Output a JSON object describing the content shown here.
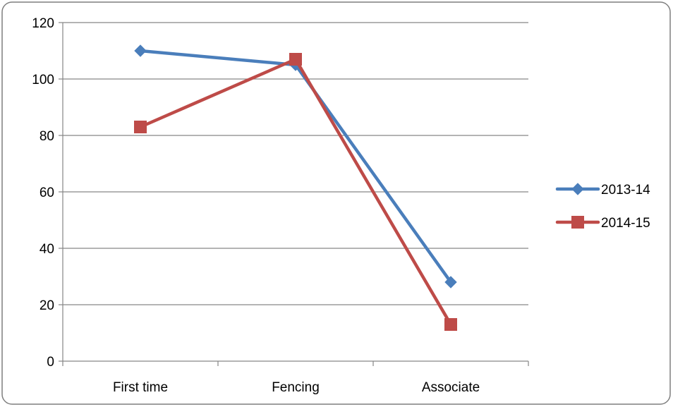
{
  "chart_data": {
    "type": "line",
    "title": "",
    "xlabel": "",
    "ylabel": "",
    "categories": [
      "First time",
      "Fencing",
      "Associate"
    ],
    "ylim": [
      0,
      120
    ],
    "yticks": [
      0,
      20,
      40,
      60,
      80,
      100,
      120
    ],
    "grid": "horizontal",
    "legend_position": "right",
    "series": [
      {
        "name": "2013-14",
        "values": [
          110,
          105,
          28
        ],
        "color": "#4a7ebb",
        "marker": "diamond"
      },
      {
        "name": "2014-15",
        "values": [
          83,
          107,
          13
        ],
        "color": "#be4b48",
        "marker": "square"
      }
    ]
  }
}
